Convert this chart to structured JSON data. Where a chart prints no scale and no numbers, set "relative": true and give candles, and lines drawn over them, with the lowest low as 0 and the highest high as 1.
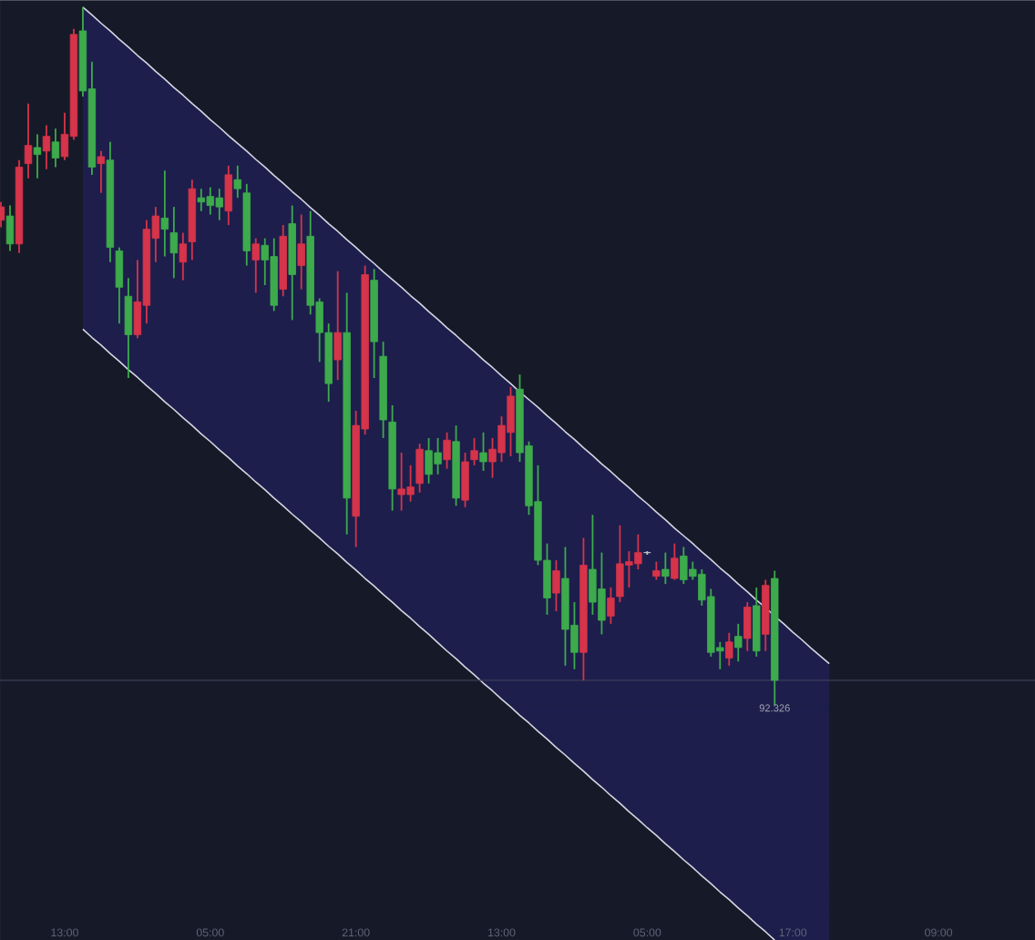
{
  "chart_data": {
    "type": "candlestick",
    "relative": true,
    "categories": [
      null,
      null,
      null,
      null,
      null,
      null,
      null,
      "13:00",
      null,
      null,
      null,
      null,
      null,
      null,
      null,
      null,
      null,
      null,
      null,
      null,
      null,
      null,
      null,
      "05:00",
      null,
      null,
      null,
      null,
      null,
      null,
      null,
      null,
      null,
      null,
      null,
      null,
      null,
      null,
      null,
      "21:00",
      null,
      null,
      null,
      null,
      null,
      null,
      null,
      null,
      null,
      null,
      null,
      null,
      null,
      null,
      null,
      "13:00",
      null,
      null,
      null,
      null,
      null,
      null,
      null,
      null,
      null,
      null,
      null,
      null,
      null,
      null,
      null,
      "05:00",
      null,
      null,
      null,
      null,
      null,
      null,
      null,
      null,
      null,
      null,
      null,
      null,
      null,
      null,
      null,
      "17:00",
      null,
      null,
      null,
      null,
      null,
      null,
      null,
      null,
      null,
      null,
      null,
      null,
      null,
      null,
      null,
      "09:00",
      null,
      null,
      null,
      null,
      null,
      null,
      null,
      null,
      null,
      null
    ],
    "ref_lines": [
      {
        "axis": "y",
        "value": 0.036,
        "color": "#3a3e54"
      }
    ],
    "annotations": [
      "92.326"
    ],
    "series": [
      {
        "type": "line",
        "color": "#d4d5e0",
        "values": [
          null,
          null,
          null,
          null,
          null,
          null,
          null,
          null,
          null,
          1.0,
          0.989,
          0.977,
          0.966,
          0.954,
          0.943,
          0.931,
          0.92,
          0.908,
          0.897,
          0.885,
          0.874,
          0.862,
          0.851,
          0.839,
          0.828,
          0.816,
          0.805,
          0.794,
          0.782,
          0.771,
          0.759,
          0.748,
          0.736,
          0.725,
          0.713,
          0.702,
          0.69,
          0.679,
          0.667,
          0.656,
          0.644,
          0.633,
          0.621,
          0.61,
          0.599,
          0.587,
          0.576,
          0.564,
          0.553,
          0.541,
          0.53,
          0.518,
          0.507,
          0.495,
          0.484,
          0.472,
          0.461,
          0.449,
          0.438,
          0.427,
          0.415,
          0.404,
          0.392,
          0.381,
          0.369,
          0.358,
          0.346,
          0.335,
          0.323,
          0.312,
          0.3,
          0.289,
          0.277,
          0.266,
          0.254,
          0.243,
          0.232,
          0.22,
          0.209,
          0.197,
          0.186,
          0.174,
          0.163,
          0.151,
          0.14,
          0.128,
          0.117,
          0.105,
          0.094,
          0.082,
          0.071,
          0.06,
          null,
          null,
          null,
          null,
          null,
          null,
          null,
          null,
          null,
          null,
          null,
          null,
          null,
          null,
          null,
          null,
          null,
          null,
          null,
          null,
          null,
          null
        ],
        "lower": [
          null,
          null,
          null,
          null,
          null,
          null,
          null,
          null,
          null,
          0.539,
          0.527,
          0.516,
          0.504,
          0.493,
          0.481,
          0.47,
          0.458,
          0.447,
          0.435,
          0.424,
          0.412,
          0.401,
          0.389,
          0.378,
          0.366,
          0.355,
          0.343,
          0.332,
          0.32,
          0.309,
          0.297,
          0.286,
          0.274,
          0.263,
          0.251,
          0.24,
          0.228,
          0.217,
          0.205,
          0.194,
          0.182,
          0.171,
          0.159,
          0.148,
          0.136,
          0.125,
          0.113,
          0.102,
          0.09,
          0.078,
          0.067,
          0.055,
          0.044,
          0.032,
          0.021,
          0.009,
          0.0,
          0.0,
          0.0,
          0.0,
          0.0,
          0.0,
          0.0,
          0.0,
          0.0,
          0.0,
          0.0,
          0.0,
          0.0,
          0.0,
          0.0,
          0.0,
          0.0,
          0.0,
          0.0,
          0.0,
          0.0,
          0.0,
          0.0,
          0.0,
          0.0,
          0.0,
          0.0,
          0.0,
          0.0,
          0.0,
          0.0,
          0.0,
          0.0,
          0.0,
          0.0,
          0.0,
          null,
          null,
          null,
          null,
          null,
          null,
          null,
          null,
          null,
          null,
          null,
          null,
          null,
          null,
          null,
          null,
          null,
          null,
          null,
          null,
          null,
          null
        ],
        "upper": [
          null,
          null,
          null,
          null,
          null,
          null,
          null,
          null,
          null,
          1.0,
          0.989,
          0.977,
          0.966,
          0.954,
          0.943,
          0.931,
          0.92,
          0.908,
          0.897,
          0.885,
          0.874,
          0.862,
          0.851,
          0.839,
          0.828,
          0.816,
          0.805,
          0.794,
          0.782,
          0.771,
          0.759,
          0.748,
          0.736,
          0.725,
          0.713,
          0.702,
          0.69,
          0.679,
          0.667,
          0.656,
          0.644,
          0.633,
          0.621,
          0.61,
          0.599,
          0.587,
          0.576,
          0.564,
          0.553,
          0.541,
          0.53,
          0.518,
          0.507,
          0.495,
          0.484,
          0.472,
          0.461,
          0.449,
          0.438,
          0.427,
          0.415,
          0.404,
          0.392,
          0.381,
          0.369,
          0.358,
          0.346,
          0.335,
          0.323,
          0.312,
          0.3,
          0.289,
          0.277,
          0.266,
          0.254,
          0.243,
          0.232,
          0.22,
          0.209,
          0.197,
          0.186,
          0.174,
          0.163,
          0.151,
          0.14,
          0.128,
          0.117,
          0.105,
          0.094,
          0.082,
          0.071,
          0.06,
          null,
          null,
          null,
          null,
          null,
          null,
          null,
          null,
          null,
          null,
          null,
          null,
          null,
          null,
          null,
          null,
          null,
          null,
          null,
          null,
          null,
          null
        ]
      },
      {
        "type": "area",
        "color": "#1d1e4c",
        "values": [
          null,
          null,
          null,
          null,
          null,
          null,
          null,
          null,
          null,
          null,
          null,
          null,
          null,
          null,
          null,
          null,
          null,
          null,
          null,
          null,
          null,
          null,
          null,
          null,
          null,
          null,
          null,
          null,
          null,
          null,
          null,
          null,
          null,
          null,
          null,
          null,
          null,
          null,
          null,
          null,
          null,
          null,
          null,
          null,
          null,
          null,
          null,
          null,
          null,
          null,
          null,
          null,
          null,
          null,
          null,
          null,
          -0.002,
          -0.014,
          -0.025,
          -0.037,
          -0.048,
          -0.06,
          -0.071,
          -0.083,
          -0.094,
          -0.106,
          -0.117,
          -0.129,
          -0.14,
          -0.152,
          -0.163,
          -0.175,
          -0.186,
          -0.198,
          -0.209,
          -0.221,
          -0.232,
          -0.244,
          -0.255,
          -0.267,
          -0.278,
          -0.29,
          -0.301,
          -0.313,
          -0.324,
          -0.336,
          -0.336,
          -0.336,
          -0.336,
          -0.336,
          -0.336,
          -0.336,
          null,
          null,
          null,
          null,
          null,
          null,
          null,
          null,
          null,
          null,
          null,
          null,
          null,
          null,
          null,
          null,
          null,
          null,
          null,
          null,
          null,
          null
        ]
      },
      {
        "type": "line",
        "color": "#d4d5e0",
        "values": [
          null,
          null,
          null,
          null,
          null,
          null,
          null,
          null,
          null,
          0.539,
          0.527,
          0.516,
          0.504,
          0.493,
          0.481,
          0.47,
          0.458,
          0.447,
          0.435,
          0.424,
          0.412,
          0.401,
          0.389,
          0.378,
          0.366,
          0.355,
          0.343,
          0.332,
          0.32,
          0.309,
          0.297,
          0.286,
          0.274,
          0.263,
          0.251,
          0.24,
          0.228,
          0.217,
          0.205,
          0.194,
          0.182,
          0.171,
          0.159,
          0.148,
          0.136,
          0.125,
          0.113,
          0.102,
          0.09,
          0.078,
          0.067,
          0.055,
          0.044,
          0.032,
          0.021,
          0.009,
          -0.002,
          -0.014,
          -0.025,
          -0.037,
          -0.048,
          -0.06,
          -0.071,
          -0.083,
          -0.094,
          -0.106,
          -0.117,
          -0.129,
          -0.14,
          -0.152,
          -0.163,
          -0.175,
          -0.186,
          -0.198,
          -0.209,
          -0.221,
          -0.232,
          -0.244,
          -0.255,
          -0.267,
          -0.278,
          -0.29,
          -0.301,
          -0.313,
          -0.324,
          -0.336,
          null,
          null,
          null,
          null,
          null,
          null,
          null,
          null,
          null,
          null,
          null,
          null,
          null,
          null,
          null,
          null,
          null,
          null,
          null,
          null,
          null,
          null,
          null,
          null,
          null,
          null,
          null,
          null
        ]
      },
      {
        "ohlc": [
          [
            0.695,
            0.721,
            0.685,
            0.714
          ],
          [
            0.701,
            0.716,
            0.651,
            0.661
          ],
          [
            0.661,
            0.781,
            0.648,
            0.771
          ],
          [
            0.776,
            0.862,
            0.755,
            0.802
          ],
          [
            0.799,
            0.818,
            0.755,
            0.789
          ],
          [
            0.794,
            0.831,
            0.768,
            0.815
          ],
          [
            0.807,
            0.826,
            0.771,
            0.784
          ],
          [
            0.786,
            0.849,
            0.781,
            0.818
          ],
          [
            0.815,
            0.969,
            0.81,
            0.961
          ],
          [
            0.966,
            1.0,
            0.872,
            0.88
          ],
          [
            0.883,
            0.922,
            0.76,
            0.771
          ],
          [
            0.776,
            0.794,
            0.734,
            0.786
          ],
          [
            0.781,
            0.807,
            0.635,
            0.656
          ],
          [
            0.651,
            0.656,
            0.547,
            0.599
          ],
          [
            0.586,
            0.612,
            0.469,
            0.531
          ],
          [
            0.531,
            0.638,
            0.526,
            0.578
          ],
          [
            0.573,
            0.695,
            0.547,
            0.682
          ],
          [
            0.669,
            0.714,
            0.635,
            0.701
          ],
          [
            0.698,
            0.766,
            0.643,
            0.682
          ],
          [
            0.677,
            0.714,
            0.612,
            0.648
          ],
          [
            0.635,
            0.677,
            0.609,
            0.661
          ],
          [
            0.664,
            0.753,
            0.638,
            0.74
          ],
          [
            0.727,
            0.74,
            0.708,
            0.721
          ],
          [
            0.729,
            0.742,
            0.703,
            0.716
          ],
          [
            0.727,
            0.74,
            0.695,
            0.714
          ],
          [
            0.708,
            0.773,
            0.688,
            0.76
          ],
          [
            0.753,
            0.773,
            0.727,
            0.74
          ],
          [
            0.734,
            0.747,
            0.63,
            0.651
          ],
          [
            0.638,
            0.669,
            0.591,
            0.661
          ],
          [
            0.659,
            0.669,
            0.602,
            0.638
          ],
          [
            0.643,
            0.669,
            0.565,
            0.573
          ],
          [
            0.596,
            0.688,
            0.586,
            0.672
          ],
          [
            0.69,
            0.716,
            0.552,
            0.617
          ],
          [
            0.63,
            0.703,
            0.596,
            0.661
          ],
          [
            0.672,
            0.708,
            0.56,
            0.573
          ],
          [
            0.578,
            0.583,
            0.492,
            0.534
          ],
          [
            0.534,
            0.547,
            0.435,
            0.461
          ],
          [
            0.495,
            0.622,
            0.466,
            0.534
          ],
          [
            0.534,
            0.591,
            0.245,
            0.297
          ],
          [
            0.271,
            0.422,
            0.227,
            0.401
          ],
          [
            0.396,
            0.63,
            0.388,
            0.617
          ],
          [
            0.609,
            0.625,
            0.469,
            0.521
          ],
          [
            0.5,
            0.521,
            0.383,
            0.409
          ],
          [
            0.406,
            0.43,
            0.279,
            0.31
          ],
          [
            0.302,
            0.362,
            0.279,
            0.31
          ],
          [
            0.302,
            0.344,
            0.292,
            0.313
          ],
          [
            0.318,
            0.375,
            0.305,
            0.367
          ],
          [
            0.365,
            0.383,
            0.318,
            0.331
          ],
          [
            0.362,
            0.383,
            0.331,
            0.346
          ],
          [
            0.352,
            0.391,
            0.339,
            0.38
          ],
          [
            0.378,
            0.401,
            0.286,
            0.297
          ],
          [
            0.294,
            0.362,
            0.284,
            0.349
          ],
          [
            0.352,
            0.383,
            0.344,
            0.365
          ],
          [
            0.362,
            0.391,
            0.336,
            0.349
          ],
          [
            0.349,
            0.383,
            0.326,
            0.367
          ],
          [
            0.362,
            0.414,
            0.349,
            0.401
          ],
          [
            0.391,
            0.456,
            0.357,
            0.443
          ],
          [
            0.453,
            0.474,
            0.349,
            0.362
          ],
          [
            0.372,
            0.378,
            0.273,
            0.286
          ],
          [
            0.292,
            0.344,
            0.201,
            0.208
          ],
          [
            0.208,
            0.232,
            0.13,
            0.154
          ],
          [
            0.161,
            0.208,
            0.135,
            0.193
          ],
          [
            0.182,
            0.227,
            0.057,
            0.109
          ],
          [
            0.115,
            0.148,
            0.052,
            0.076
          ],
          [
            0.076,
            0.24,
            0.036,
            0.201
          ],
          [
            0.195,
            0.273,
            0.13,
            0.148
          ],
          [
            0.167,
            0.219,
            0.102,
            0.122
          ],
          [
            0.128,
            0.169,
            0.117,
            0.154
          ],
          [
            0.156,
            0.258,
            0.148,
            0.203
          ],
          [
            0.201,
            0.221,
            0.169,
            0.206
          ],
          [
            0.203,
            0.245,
            0.195,
            0.219
          ],
          [
            0.219,
            0.221,
            0.216,
            0.219
          ],
          [
            0.185,
            0.206,
            0.18,
            0.193
          ],
          [
            0.195,
            0.219,
            0.174,
            0.185
          ],
          [
            0.182,
            0.232,
            0.18,
            0.211
          ],
          [
            0.214,
            0.227,
            0.174,
            0.18
          ],
          [
            0.195,
            0.206,
            0.18,
            0.185
          ],
          [
            0.188,
            0.195,
            0.143,
            0.151
          ],
          [
            0.156,
            0.167,
            0.07,
            0.076
          ],
          [
            0.083,
            0.091,
            0.052,
            0.078
          ],
          [
            0.068,
            0.104,
            0.057,
            0.091
          ],
          [
            0.099,
            0.117,
            0.063,
            0.083
          ],
          [
            0.096,
            0.148,
            0.078,
            0.141
          ],
          [
            0.143,
            0.169,
            0.07,
            0.078
          ],
          [
            0.102,
            0.18,
            0.078,
            0.172
          ],
          [
            0.182,
            0.193,
            0.0,
            0.036
          ],
          null,
          null,
          null,
          null,
          null,
          null,
          null,
          null,
          null,
          null,
          null,
          null,
          null,
          null,
          null,
          null,
          null,
          null,
          null,
          null,
          null,
          null,
          null,
          null,
          null,
          null,
          null,
          null
        ],
        "colors": [
          "#d6344a",
          "#3dab4c",
          "#d6344a",
          "#d6344a",
          "#3dab4c",
          "#d6344a",
          "#3dab4c",
          "#d6344a",
          "#d6344a",
          "#3dab4c",
          "#3dab4c",
          "#d6344a",
          "#3dab4c",
          "#3dab4c",
          "#3dab4c",
          "#d6344a",
          "#d6344a",
          "#d6344a",
          "#3dab4c",
          "#3dab4c",
          "#d6344a",
          "#d6344a",
          "#3dab4c",
          "#3dab4c",
          "#3dab4c",
          "#d6344a",
          "#3dab4c",
          "#3dab4c",
          "#d6344a",
          "#3dab4c",
          "#3dab4c",
          "#d6344a",
          "#3dab4c",
          "#d6344a",
          "#3dab4c",
          "#3dab4c",
          "#3dab4c",
          "#d6344a",
          "#3dab4c",
          "#d6344a",
          "#d6344a",
          "#3dab4c",
          "#3dab4c",
          "#3dab4c",
          "#d6344a",
          "#d6344a",
          "#d6344a",
          "#3dab4c",
          "#3dab4c",
          "#d6344a",
          "#3dab4c",
          "#d6344a",
          "#d6344a",
          "#3dab4c",
          "#d6344a",
          "#d6344a",
          "#d6344a",
          "#3dab4c",
          "#3dab4c",
          "#3dab4c",
          "#3dab4c",
          "#d6344a",
          "#3dab4c",
          "#3dab4c",
          "#d6344a",
          "#3dab4c",
          "#3dab4c",
          "#d6344a",
          "#d6344a",
          "#d6344a",
          "#d6344a",
          "#c4c6d2",
          "#d6344a",
          "#3dab4c",
          "#d6344a",
          "#3dab4c",
          "#3dab4c",
          "#3dab4c",
          "#3dab4c",
          "#3dab4c",
          "#d6344a",
          "#3dab4c",
          "#d6344a",
          "#3dab4c",
          "#d6344a",
          "#3dab4c",
          null,
          null,
          null,
          null,
          null,
          null,
          null,
          null,
          null,
          null,
          null,
          null,
          null,
          null,
          null,
          null,
          null,
          null,
          null,
          null,
          null,
          null,
          null,
          null,
          null,
          null,
          null,
          null
        ]
      }
    ]
  }
}
